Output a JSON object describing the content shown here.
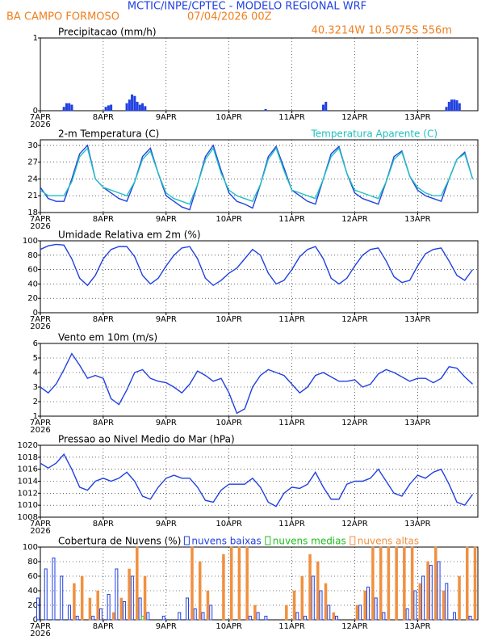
{
  "header": {
    "title": "MCTIC/INPE/CPTEC - MODELO REGIONAL WRF",
    "location": "BA CAMPO FORMOSO",
    "run": "07/04/2026 00Z",
    "coordinates": "40.3214W 10.5075S 556m"
  },
  "chart_data": [
    {
      "type": "bar",
      "title": "Precipitacao (mm/h)",
      "x": [
        9,
        10,
        11,
        12,
        25,
        26,
        27,
        33,
        34,
        35,
        36,
        37,
        38,
        39,
        40,
        86,
        108,
        109,
        155,
        156,
        157,
        158,
        159,
        160
      ],
      "series": [
        {
          "color": "#2040e0",
          "values": [
            0.05,
            0.1,
            0.1,
            0.08,
            0.05,
            0.07,
            0.08,
            0.1,
            0.15,
            0.22,
            0.2,
            0.12,
            0.08,
            0.1,
            0.06,
            0.02,
            0.08,
            0.12,
            0.05,
            0.12,
            0.15,
            0.15,
            0.14,
            0.1
          ]
        }
      ],
      "xlim": [
        0,
        167
      ],
      "xticks": [
        {
          "value": 0,
          "label": "7APR"
        },
        {
          "value": 24,
          "label": "8APR"
        },
        {
          "value": 48,
          "label": "9APR"
        },
        {
          "value": 72,
          "label": "10APR"
        },
        {
          "value": 96,
          "label": "11APR"
        },
        {
          "value": 120,
          "label": "12APR"
        },
        {
          "value": 144,
          "label": "13APR"
        }
      ],
      "year_label": "2026",
      "ylim": [
        0,
        1
      ],
      "yticks": [
        0,
        1
      ],
      "grid": true
    },
    {
      "type": "line",
      "title": "2-m Temperatura (C)",
      "x": [
        0,
        3,
        6,
        9,
        12,
        15,
        18,
        21,
        24,
        27,
        30,
        33,
        36,
        39,
        42,
        45,
        48,
        51,
        54,
        57,
        60,
        63,
        66,
        69,
        72,
        75,
        78,
        81,
        84,
        87,
        90,
        93,
        96,
        99,
        102,
        105,
        108,
        111,
        114,
        117,
        120,
        123,
        126,
        129,
        132,
        135,
        138,
        141,
        144,
        147,
        150,
        153,
        156,
        159,
        162,
        165
      ],
      "series": [
        {
          "color": "#2040e0",
          "values": [
            22.5,
            20.5,
            20,
            20,
            24,
            28.5,
            30,
            24,
            22.5,
            21.5,
            20.5,
            20,
            23.5,
            28,
            29.5,
            25,
            21,
            20,
            19,
            18.5,
            23,
            28,
            30,
            25.5,
            21.5,
            20,
            19.5,
            18.8,
            23,
            28,
            29.8,
            26,
            22,
            21,
            20,
            19.5,
            24,
            28.5,
            29.8,
            25,
            21.5,
            20.5,
            20,
            19.5,
            23.5,
            28,
            29,
            24.5,
            22,
            21,
            20.5,
            20,
            24,
            27.5,
            28.8,
            24
          ]
        },
        {
          "name": "Temperatura Aparente (C)",
          "color": "#20c0c0",
          "values": [
            22,
            21,
            21,
            21,
            23.5,
            28,
            29.5,
            24,
            22.5,
            22,
            21.5,
            21,
            23.5,
            27.5,
            29,
            25,
            21.5,
            20.5,
            20,
            19.5,
            23,
            27.5,
            29.5,
            25,
            22,
            21,
            20.5,
            20,
            23,
            27.5,
            29.5,
            25.5,
            22,
            21.5,
            21,
            20.5,
            24,
            28,
            29.5,
            25,
            22,
            21.5,
            21,
            20.5,
            23.5,
            27.5,
            28.8,
            24.5,
            22.5,
            21.5,
            21,
            21,
            24,
            27.5,
            28.5,
            24
          ]
        }
      ],
      "legend": "top-right",
      "xlim": [
        0,
        167
      ],
      "xticks": [
        {
          "value": 0,
          "label": "7APR"
        },
        {
          "value": 24,
          "label": "8APR"
        },
        {
          "value": 48,
          "label": "9APR"
        },
        {
          "value": 72,
          "label": "10APR"
        },
        {
          "value": 96,
          "label": "11APR"
        },
        {
          "value": 120,
          "label": "12APR"
        },
        {
          "value": 144,
          "label": "13APR"
        }
      ],
      "year_label": "2026",
      "ylim": [
        18,
        31
      ],
      "yticks": [
        18,
        21,
        24,
        27,
        30
      ],
      "grid": true
    },
    {
      "type": "line",
      "title": "Umidade Relativa em 2m (%)",
      "x": [
        0,
        3,
        6,
        9,
        12,
        15,
        18,
        21,
        24,
        27,
        30,
        33,
        36,
        39,
        42,
        45,
        48,
        51,
        54,
        57,
        60,
        63,
        66,
        69,
        72,
        75,
        78,
        81,
        84,
        87,
        90,
        93,
        96,
        99,
        102,
        105,
        108,
        111,
        114,
        117,
        120,
        123,
        126,
        129,
        132,
        135,
        138,
        141,
        144,
        147,
        150,
        153,
        156,
        159,
        162,
        165
      ],
      "series": [
        {
          "color": "#2040e0",
          "values": [
            88,
            93,
            95,
            94,
            75,
            48,
            38,
            52,
            75,
            88,
            92,
            92,
            78,
            52,
            40,
            48,
            65,
            80,
            90,
            92,
            75,
            48,
            38,
            45,
            55,
            62,
            75,
            88,
            80,
            55,
            40,
            45,
            60,
            78,
            88,
            92,
            75,
            48,
            40,
            48,
            65,
            80,
            88,
            90,
            72,
            50,
            42,
            45,
            65,
            82,
            88,
            90,
            72,
            52,
            45,
            60
          ]
        }
      ],
      "xlim": [
        0,
        167
      ],
      "xticks": [
        {
          "value": 0,
          "label": "7APR"
        },
        {
          "value": 24,
          "label": "8APR"
        },
        {
          "value": 48,
          "label": "9APR"
        },
        {
          "value": 72,
          "label": "10APR"
        },
        {
          "value": 96,
          "label": "11APR"
        },
        {
          "value": 120,
          "label": "12APR"
        },
        {
          "value": 144,
          "label": "13APR"
        }
      ],
      "year_label": "2026",
      "ylim": [
        0,
        100
      ],
      "yticks": [
        0,
        20,
        40,
        60,
        80,
        100
      ],
      "grid": true
    },
    {
      "type": "line",
      "title": "Vento em 10m (m/s)",
      "x": [
        0,
        3,
        6,
        9,
        12,
        15,
        18,
        21,
        24,
        27,
        30,
        33,
        36,
        39,
        42,
        45,
        48,
        51,
        54,
        57,
        60,
        63,
        66,
        69,
        72,
        75,
        78,
        81,
        84,
        87,
        90,
        93,
        96,
        99,
        102,
        105,
        108,
        111,
        114,
        117,
        120,
        123,
        126,
        129,
        132,
        135,
        138,
        141,
        144,
        147,
        150,
        153,
        156,
        159,
        162,
        165
      ],
      "series": [
        {
          "color": "#2040e0",
          "values": [
            3,
            2.6,
            3.2,
            4.2,
            5.3,
            4.5,
            3.6,
            3.8,
            3.6,
            2.2,
            1.8,
            2.8,
            4,
            4.2,
            3.6,
            3.4,
            3.3,
            3,
            2.6,
            3.2,
            4.1,
            3.8,
            3.4,
            3.6,
            2.6,
            1.2,
            1.5,
            3,
            3.8,
            4.2,
            4,
            3.8,
            3.2,
            2.6,
            3,
            3.8,
            4,
            3.7,
            3.4,
            3.4,
            3.5,
            3,
            3.2,
            3.9,
            4.2,
            4,
            3.7,
            3.4,
            3.6,
            3.6,
            3.3,
            3.6,
            4.4,
            4.3,
            3.7,
            3.2
          ]
        }
      ],
      "xlim": [
        0,
        167
      ],
      "xticks": [
        {
          "value": 0,
          "label": "7APR"
        },
        {
          "value": 24,
          "label": "8APR"
        },
        {
          "value": 48,
          "label": "9APR"
        },
        {
          "value": 72,
          "label": "10APR"
        },
        {
          "value": 96,
          "label": "11APR"
        },
        {
          "value": 120,
          "label": "12APR"
        },
        {
          "value": 144,
          "label": "13APR"
        }
      ],
      "year_label": "2026",
      "ylim": [
        1,
        6
      ],
      "yticks": [
        1,
        2,
        3,
        4,
        5,
        6
      ],
      "grid": true
    },
    {
      "type": "line",
      "title": "Pressao ao Nivel Medio do Mar (hPa)",
      "x": [
        0,
        3,
        6,
        9,
        12,
        15,
        18,
        21,
        24,
        27,
        30,
        33,
        36,
        39,
        42,
        45,
        48,
        51,
        54,
        57,
        60,
        63,
        66,
        69,
        72,
        75,
        78,
        81,
        84,
        87,
        90,
        93,
        96,
        99,
        102,
        105,
        108,
        111,
        114,
        117,
        120,
        123,
        126,
        129,
        132,
        135,
        138,
        141,
        144,
        147,
        150,
        153,
        156,
        159,
        162,
        165
      ],
      "series": [
        {
          "color": "#2040e0",
          "values": [
            1017,
            1016.2,
            1017,
            1018.5,
            1016,
            1013,
            1012.5,
            1014,
            1014.5,
            1014,
            1014.5,
            1015.5,
            1014,
            1011.5,
            1011,
            1013,
            1014.5,
            1015,
            1014.5,
            1014.5,
            1013,
            1010.8,
            1010.5,
            1012.5,
            1013.5,
            1013.5,
            1013.5,
            1014.5,
            1013,
            1010.5,
            1009.8,
            1012,
            1013,
            1012.8,
            1013.5,
            1015.5,
            1013,
            1011,
            1011,
            1013.5,
            1014,
            1014,
            1014.5,
            1016,
            1014,
            1012,
            1011.5,
            1013.5,
            1015,
            1014.5,
            1015.5,
            1016,
            1013.5,
            1010.5,
            1010,
            1011.8
          ]
        }
      ],
      "xlim": [
        0,
        167
      ],
      "xticks": [
        {
          "value": 0,
          "label": "7APR"
        },
        {
          "value": 24,
          "label": "8APR"
        },
        {
          "value": 48,
          "label": "9APR"
        },
        {
          "value": 72,
          "label": "10APR"
        },
        {
          "value": 96,
          "label": "11APR"
        },
        {
          "value": 120,
          "label": "12APR"
        },
        {
          "value": 144,
          "label": "13APR"
        }
      ],
      "year_label": "2026",
      "ylim": [
        1008,
        1020
      ],
      "yticks": [
        1008,
        1010,
        1012,
        1014,
        1016,
        1018,
        1020
      ],
      "grid": true
    },
    {
      "type": "bar",
      "title": "Cobertura de Nuvens (%)",
      "x": [
        0,
        3,
        6,
        9,
        12,
        15,
        18,
        21,
        24,
        27,
        30,
        33,
        36,
        39,
        42,
        45,
        48,
        51,
        54,
        57,
        60,
        63,
        66,
        69,
        72,
        75,
        78,
        81,
        84,
        87,
        90,
        93,
        96,
        99,
        102,
        105,
        108,
        111,
        114,
        117,
        120,
        123,
        126,
        129,
        132,
        135,
        138,
        141,
        144,
        147,
        150,
        153,
        156,
        159,
        162,
        165
      ],
      "series": [
        {
          "name": "nuvens baixas",
          "color": "#2040e0",
          "outline": true,
          "values": [
            30,
            70,
            85,
            60,
            20,
            5,
            0,
            5,
            15,
            35,
            70,
            25,
            60,
            30,
            10,
            0,
            5,
            0,
            10,
            30,
            15,
            10,
            20,
            0,
            0,
            0,
            0,
            5,
            10,
            5,
            0,
            0,
            0,
            10,
            5,
            60,
            40,
            20,
            5,
            0,
            0,
            20,
            45,
            30,
            10,
            0,
            0,
            15,
            40,
            60,
            75,
            80,
            50,
            10,
            0,
            5
          ]
        },
        {
          "name": "nuvens medias",
          "color": "#20c020",
          "outline": true,
          "values": [
            0,
            0,
            0,
            0,
            0,
            0,
            0,
            0,
            0,
            0,
            0,
            0,
            0,
            5,
            0,
            0,
            0,
            0,
            0,
            0,
            0,
            0,
            0,
            0,
            0,
            0,
            0,
            0,
            0,
            0,
            0,
            0,
            0,
            0,
            0,
            0,
            0,
            0,
            0,
            0,
            0,
            0,
            0,
            0,
            0,
            0,
            0,
            0,
            0,
            0,
            0,
            0,
            0,
            0,
            0,
            0
          ]
        },
        {
          "name": "nuvens altas",
          "color": "#f09040",
          "outline": false,
          "values": [
            0,
            0,
            0,
            0,
            50,
            60,
            30,
            40,
            0,
            10,
            30,
            70,
            100,
            60,
            0,
            0,
            0,
            0,
            0,
            100,
            80,
            40,
            0,
            90,
            100,
            100,
            100,
            20,
            0,
            0,
            0,
            20,
            40,
            60,
            90,
            80,
            50,
            10,
            0,
            0,
            20,
            40,
            100,
            100,
            100,
            100,
            100,
            100,
            50,
            80,
            100,
            40,
            0,
            60,
            100,
            100
          ]
        }
      ],
      "legend": "top",
      "xlim": [
        0,
        167
      ],
      "xticks": [
        {
          "value": 0,
          "label": "7APR"
        },
        {
          "value": 24,
          "label": "8APR"
        },
        {
          "value": 48,
          "label": "9APR"
        },
        {
          "value": 72,
          "label": "10APR"
        },
        {
          "value": 96,
          "label": "11APR"
        },
        {
          "value": 120,
          "label": "12APR"
        },
        {
          "value": 144,
          "label": "13APR"
        }
      ],
      "year_label": "2026",
      "ylim": [
        0,
        100
      ],
      "yticks": [
        0,
        20,
        40,
        60,
        80,
        100
      ],
      "grid": true
    }
  ]
}
